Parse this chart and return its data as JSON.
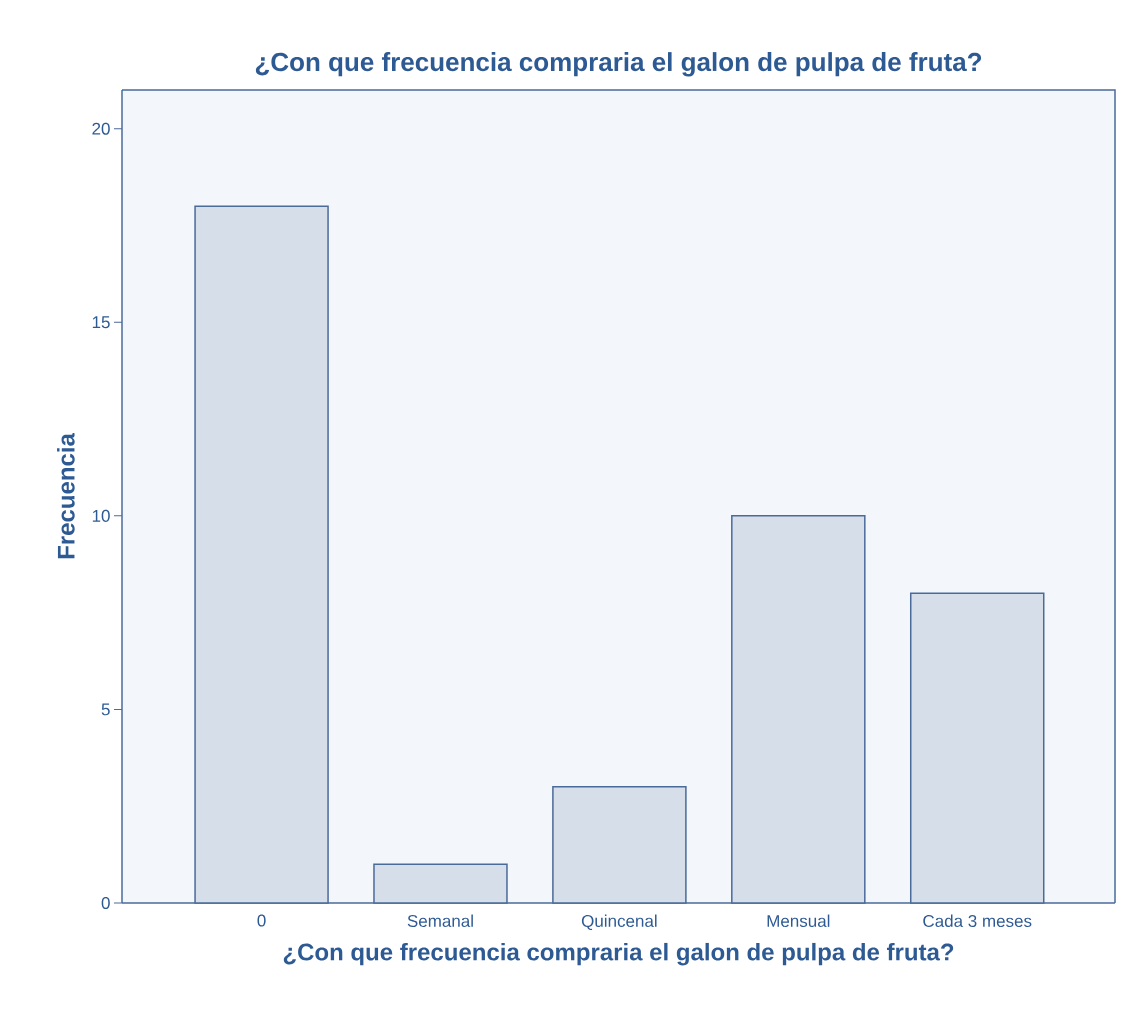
{
  "chart_data": {
    "type": "bar",
    "title": "¿Con que frecuencia compraria el galon de pulpa de fruta?",
    "xlabel": "¿Con que frecuencia compraria el galon de pulpa de fruta?",
    "ylabel": "Frecuencia",
    "categories": [
      "0",
      "Semanal",
      "Quincenal",
      "Mensual",
      "Cada 3 meses"
    ],
    "values": [
      18,
      1,
      3,
      10,
      8
    ],
    "color": "#d6dfe9",
    "ylim": [
      0,
      21
    ],
    "yticks": [
      0,
      5,
      10,
      15,
      20
    ]
  }
}
